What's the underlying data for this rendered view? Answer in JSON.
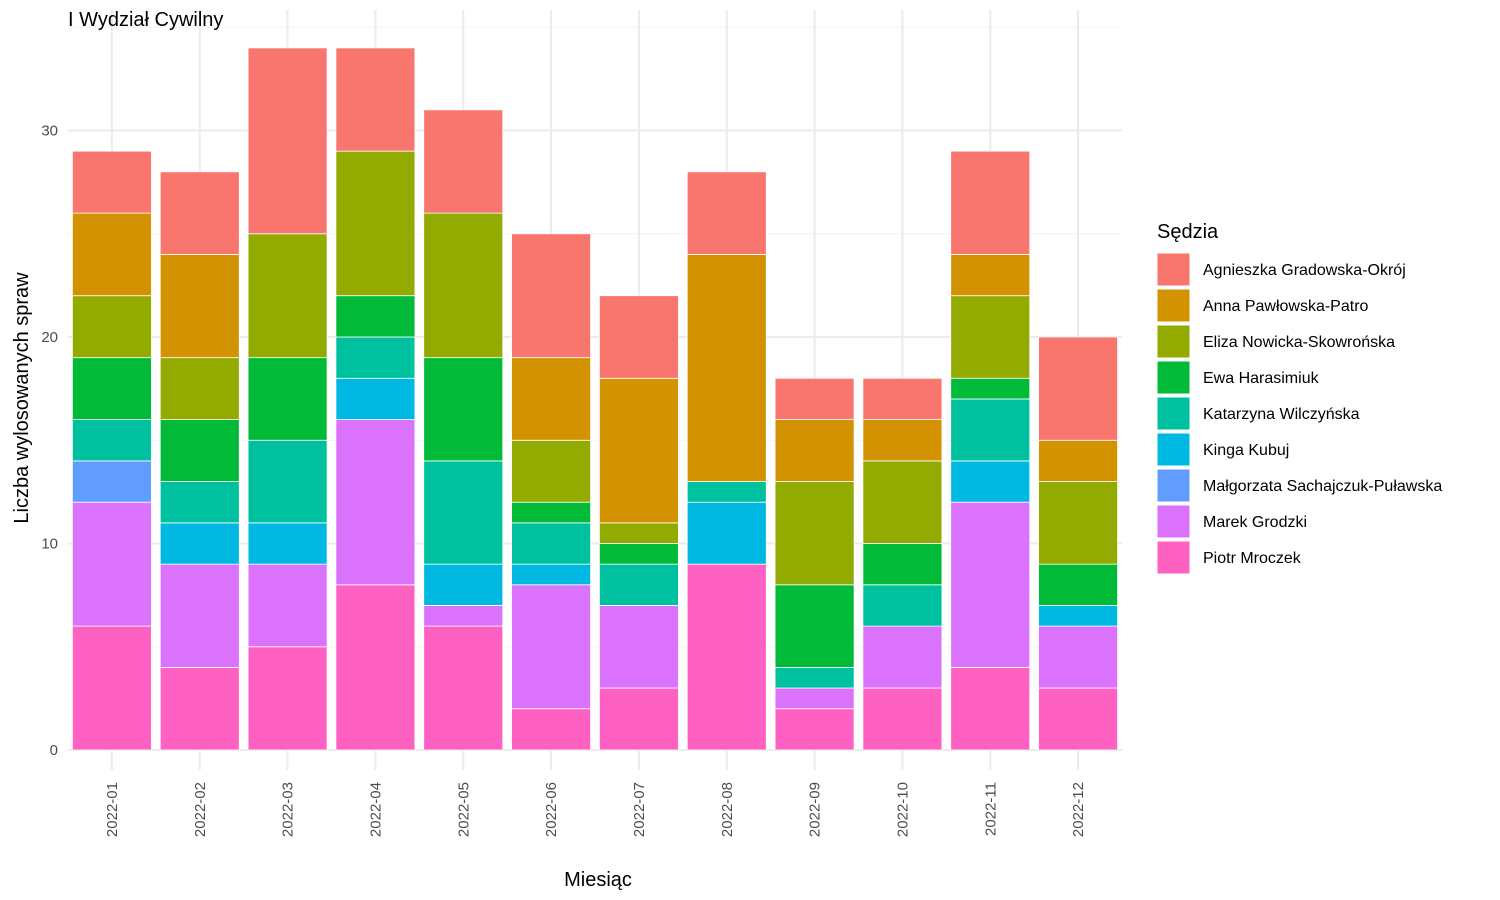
{
  "chart_data": {
    "type": "bar",
    "stacked": true,
    "title": "I Wydział Cywilny",
    "xlabel": "Miesiąc",
    "ylabel": "Liczba wylosowanych spraw",
    "ylim": [
      0,
      34
    ],
    "yticks": [
      0,
      10,
      20,
      30
    ],
    "grid": true,
    "legend_title": "Sędzia",
    "legend_position": "right",
    "categories": [
      "2022-01",
      "2022-02",
      "2022-03",
      "2022-04",
      "2022-05",
      "2022-06",
      "2022-07",
      "2022-08",
      "2022-09",
      "2022-10",
      "2022-11",
      "2022-12"
    ],
    "series": [
      {
        "name": "Agnieszka Gradowska-Okrój",
        "color": "#F8766D",
        "values": [
          3,
          4,
          9,
          5,
          5,
          6,
          4,
          4,
          2,
          2,
          5,
          5
        ]
      },
      {
        "name": "Anna Pawłowska-Patro",
        "color": "#D39200",
        "values": [
          4,
          5,
          0,
          0,
          0,
          4,
          7,
          11,
          3,
          2,
          2,
          2
        ]
      },
      {
        "name": "Eliza Nowicka-Skowrońska",
        "color": "#93AA00",
        "values": [
          3,
          3,
          6,
          7,
          7,
          3,
          1,
          0,
          5,
          4,
          4,
          4
        ]
      },
      {
        "name": "Ewa Harasimiuk",
        "color": "#00BA38",
        "values": [
          3,
          3,
          4,
          2,
          5,
          1,
          1,
          0,
          4,
          2,
          1,
          2
        ]
      },
      {
        "name": "Katarzyna Wilczyńska",
        "color": "#00C19F",
        "values": [
          2,
          2,
          4,
          2,
          5,
          2,
          2,
          1,
          1,
          2,
          3,
          0
        ]
      },
      {
        "name": "Kinga Kubuj",
        "color": "#00B9E3",
        "values": [
          0,
          2,
          2,
          2,
          2,
          1,
          0,
          3,
          0,
          0,
          2,
          1
        ]
      },
      {
        "name": "Małgorzata Sachajczuk-Puławska",
        "color": "#619CFF",
        "values": [
          2,
          0,
          0,
          0,
          0,
          0,
          0,
          0,
          0,
          0,
          0,
          0
        ]
      },
      {
        "name": "Marek Grodzki",
        "color": "#DB72FB",
        "values": [
          6,
          5,
          4,
          8,
          1,
          6,
          4,
          0,
          1,
          3,
          8,
          3
        ]
      },
      {
        "name": "Piotr Mroczek",
        "color": "#FF61C3",
        "values": [
          6,
          4,
          5,
          8,
          6,
          2,
          3,
          9,
          2,
          3,
          4,
          3
        ]
      }
    ]
  }
}
